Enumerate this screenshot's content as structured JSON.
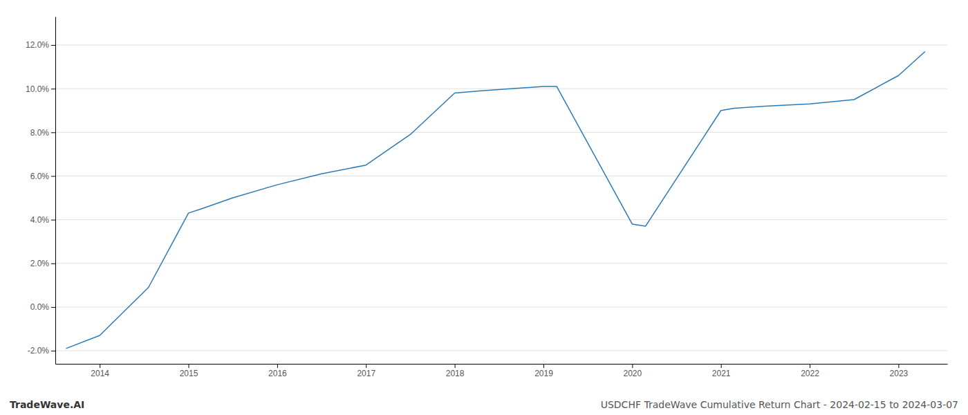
{
  "chart_data": {
    "type": "line",
    "title": "USDCHF TradeWave Cumulative Return Chart - 2024-02-15 to 2024-03-07",
    "annotations": [
      "TradeWave.AI"
    ],
    "x": [
      2013.62,
      2014.0,
      2014.55,
      2015.0,
      2015.15,
      2015.5,
      2016.0,
      2016.5,
      2017.0,
      2017.5,
      2018.0,
      2018.3,
      2019.0,
      2019.15,
      2020.0,
      2020.15,
      2021.0,
      2021.15,
      2021.5,
      2022.0,
      2022.5,
      2023.0,
      2023.3
    ],
    "values": [
      -0.019,
      -0.013,
      0.009,
      0.043,
      0.045,
      0.05,
      0.056,
      0.061,
      0.065,
      0.079,
      0.098,
      0.099,
      0.101,
      0.101,
      0.038,
      0.037,
      0.09,
      0.091,
      0.092,
      0.093,
      0.095,
      0.106,
      0.117
    ],
    "color": "#2a7ab5",
    "xlim": [
      2013.5,
      2023.55
    ],
    "ylim": [
      -0.026,
      0.133
    ],
    "xticks": [
      2014,
      2015,
      2016,
      2017,
      2018,
      2019,
      2020,
      2021,
      2022,
      2023
    ],
    "yticks": [
      {
        "value": -0.02,
        "label": "-2.0%"
      },
      {
        "value": 0.0,
        "label": "0.0%"
      },
      {
        "value": 0.02,
        "label": "2.0%"
      },
      {
        "value": 0.04,
        "label": "4.0%"
      },
      {
        "value": 0.06,
        "label": "6.0%"
      },
      {
        "value": 0.08,
        "label": "8.0%"
      },
      {
        "value": 0.1,
        "label": "10.0%"
      },
      {
        "value": 0.12,
        "label": "12.0%"
      }
    ],
    "grid": true
  }
}
